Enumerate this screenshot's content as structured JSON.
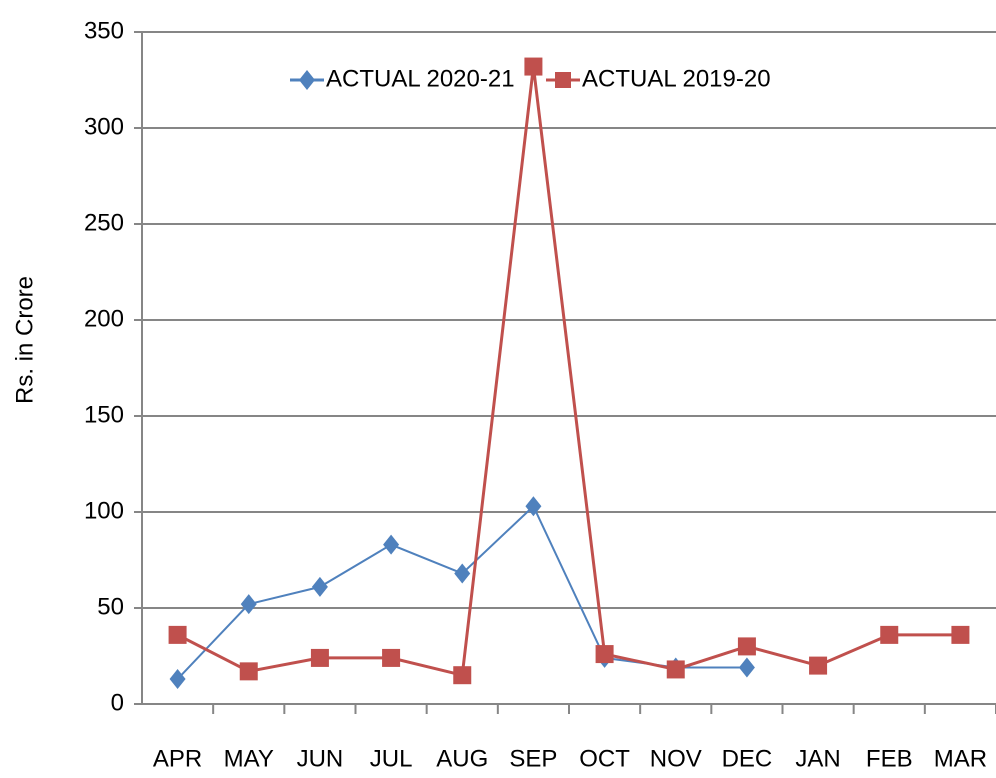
{
  "chart_data": {
    "type": "line",
    "y_label": "Rs. in Crore",
    "categories": [
      "APR",
      "MAY",
      "JUN",
      "JUL",
      "AUG",
      "SEP",
      "OCT",
      "NOV",
      "DEC",
      "JAN",
      "FEB",
      "MAR"
    ],
    "series": [
      {
        "name": "ACTUAL 2020-21",
        "color": "#4f81bd",
        "marker": "diamond",
        "values": [
          13,
          52,
          61,
          83,
          68,
          103,
          24,
          19,
          19,
          null,
          null,
          null
        ]
      },
      {
        "name": "ACTUAL 2019-20",
        "color": "#c0504d",
        "marker": "square",
        "values": [
          36,
          17,
          24,
          24,
          15,
          332,
          26,
          18,
          30,
          20,
          36,
          36
        ]
      }
    ],
    "ylim": [
      0,
      350
    ],
    "yticks": [
      0,
      50,
      100,
      150,
      200,
      250,
      300,
      350
    ],
    "grid": true,
    "legend": "top"
  }
}
